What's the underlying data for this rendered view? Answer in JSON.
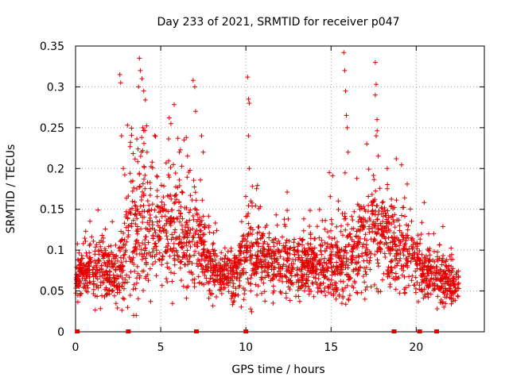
{
  "chart_data": {
    "type": "scatter",
    "title": "Day 233 of 2021, SRMTID for receiver p047",
    "xlabel": "GPS time / hours",
    "ylabel": "SRMTID / TECUs",
    "xlim": [
      0,
      24
    ],
    "ylim": [
      0,
      0.35
    ],
    "x_ticks": [
      0,
      5,
      10,
      15,
      20
    ],
    "x_tick_labels": [
      "0",
      "5",
      "10",
      "15",
      "20"
    ],
    "y_ticks": [
      0,
      0.05,
      0.1,
      0.15,
      0.2,
      0.25,
      0.3,
      0.35
    ],
    "y_tick_labels": [
      "0",
      "0.05",
      "0.1",
      "0.15",
      "0.2",
      "0.25",
      "0.3",
      "0.35"
    ],
    "grid": true,
    "marker": "+",
    "colors": {
      "series": "#e00000",
      "axis": "#000000",
      "grid": "#a0a0a0"
    },
    "zero_markers_x": [
      0.1,
      3.1,
      7.1,
      10.0,
      18.7,
      20.2,
      21.2
    ],
    "density_profile": {
      "x": [
        0,
        0.5,
        1,
        1.5,
        2,
        2.5,
        3,
        3.5,
        4,
        4.5,
        5,
        5.5,
        6,
        6.5,
        7,
        7.5,
        8,
        8.5,
        9,
        9.5,
        10,
        10.5,
        11,
        11.5,
        12,
        12.5,
        13,
        13.5,
        14,
        14.5,
        15,
        15.5,
        16,
        16.5,
        17,
        17.5,
        18,
        18.5,
        19,
        19.5,
        20,
        20.5,
        21,
        21.5,
        22,
        22.5
      ],
      "median": [
        0.06,
        0.075,
        0.07,
        0.08,
        0.075,
        0.07,
        0.12,
        0.13,
        0.14,
        0.12,
        0.11,
        0.12,
        0.12,
        0.11,
        0.11,
        0.1,
        0.08,
        0.07,
        0.07,
        0.07,
        0.1,
        0.09,
        0.09,
        0.085,
        0.08,
        0.085,
        0.075,
        0.08,
        0.08,
        0.085,
        0.08,
        0.08,
        0.09,
        0.1,
        0.11,
        0.12,
        0.12,
        0.11,
        0.1,
        0.09,
        0.08,
        0.075,
        0.07,
        0.065,
        0.06,
        0.055
      ],
      "spread": [
        0.02,
        0.025,
        0.025,
        0.03,
        0.025,
        0.03,
        0.06,
        0.08,
        0.08,
        0.06,
        0.05,
        0.06,
        0.06,
        0.05,
        0.05,
        0.05,
        0.03,
        0.025,
        0.025,
        0.025,
        0.05,
        0.04,
        0.035,
        0.03,
        0.03,
        0.035,
        0.03,
        0.03,
        0.03,
        0.035,
        0.035,
        0.035,
        0.045,
        0.045,
        0.05,
        0.05,
        0.05,
        0.045,
        0.04,
        0.035,
        0.03,
        0.03,
        0.025,
        0.025,
        0.02,
        0.02
      ]
    },
    "spike_points": [
      [
        2.6,
        0.315
      ],
      [
        2.65,
        0.305
      ],
      [
        2.7,
        0.24
      ],
      [
        2.8,
        0.2
      ],
      [
        3.05,
        0.253
      ],
      [
        3.75,
        0.335
      ],
      [
        3.8,
        0.32
      ],
      [
        3.7,
        0.3
      ],
      [
        3.9,
        0.31
      ],
      [
        4.0,
        0.295
      ],
      [
        4.1,
        0.284
      ],
      [
        3.95,
        0.25
      ],
      [
        4.2,
        0.22
      ],
      [
        5.5,
        0.262
      ],
      [
        5.6,
        0.255
      ],
      [
        6.1,
        0.22
      ],
      [
        6.9,
        0.308
      ],
      [
        7.0,
        0.3
      ],
      [
        7.05,
        0.27
      ],
      [
        7.4,
        0.24
      ],
      [
        7.5,
        0.22
      ],
      [
        10.1,
        0.312
      ],
      [
        10.15,
        0.285
      ],
      [
        10.2,
        0.28
      ],
      [
        10.15,
        0.24
      ],
      [
        10.2,
        0.2
      ],
      [
        14.9,
        0.195
      ],
      [
        15.75,
        0.342
      ],
      [
        15.8,
        0.32
      ],
      [
        15.85,
        0.295
      ],
      [
        15.9,
        0.265
      ],
      [
        15.95,
        0.25
      ],
      [
        16.0,
        0.22
      ],
      [
        17.6,
        0.33
      ],
      [
        17.65,
        0.303
      ],
      [
        17.6,
        0.29
      ],
      [
        17.7,
        0.26
      ],
      [
        17.65,
        0.24
      ],
      [
        18.3,
        0.2
      ]
    ],
    "n_points": 2600,
    "seed": 47
  }
}
